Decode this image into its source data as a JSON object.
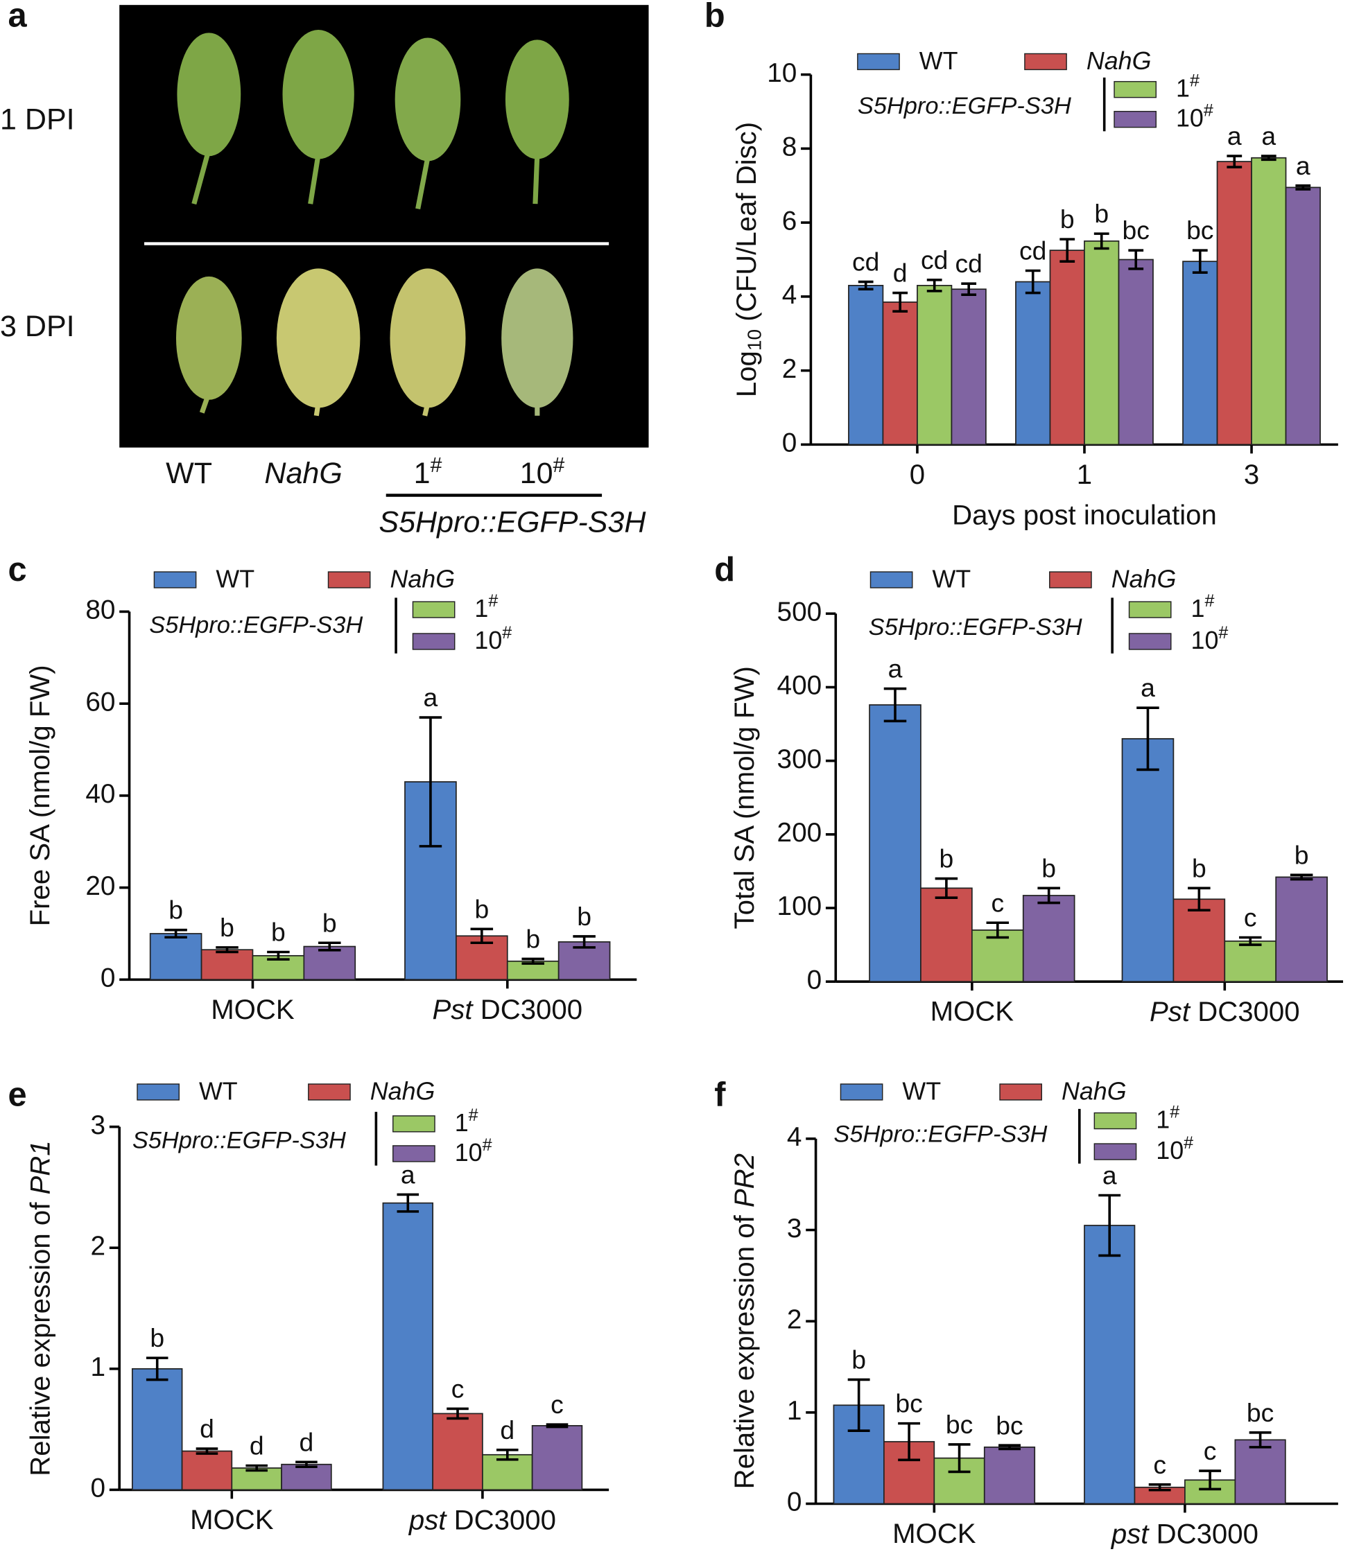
{
  "photo_panel": {
    "panel_label": "a",
    "row_labels": [
      "1 DPI",
      "3 DPI"
    ],
    "column_labels": [
      "WT",
      "NahG",
      "1#",
      "10#"
    ],
    "group_label": "S5Hpro::EGFP-S3H"
  },
  "chart_data": [
    {
      "type": "bar",
      "panel_label": "b",
      "ylabel_parts": [
        {
          "text": "Log"
        },
        {
          "text": "10",
          "style": "sub"
        },
        {
          "text": " (CFU/Leaf Disc)"
        }
      ],
      "xlabel": "Days post inoculation",
      "categories": [
        "0",
        "1",
        "3"
      ],
      "group_label": "S5Hpro::EGFP-S3H",
      "ylim": [
        0,
        10
      ],
      "yticks": [
        0,
        2,
        4,
        6,
        8,
        10
      ],
      "series": [
        {
          "name": "WT",
          "color": "#4f81c7",
          "values": [
            4.3,
            4.4,
            4.95
          ],
          "errors": [
            0.1,
            0.3,
            0.3
          ],
          "letters": [
            "cd",
            "cd",
            "bc"
          ]
        },
        {
          "name": "NahG",
          "italic": true,
          "color": "#c9504f",
          "values": [
            3.85,
            5.25,
            7.65
          ],
          "errors": [
            0.25,
            0.3,
            0.15
          ],
          "letters": [
            "d",
            "b",
            "a"
          ]
        },
        {
          "name": "1#",
          "color": "#9bc865",
          "values": [
            4.3,
            5.5,
            7.75
          ],
          "errors": [
            0.15,
            0.2,
            0.05
          ],
          "letters": [
            "cd",
            "b",
            "a"
          ]
        },
        {
          "name": "10#",
          "color": "#8064a2",
          "values": [
            4.2,
            5.0,
            6.95
          ],
          "errors": [
            0.15,
            0.25,
            0.05
          ],
          "letters": [
            "cd",
            "bc",
            "a"
          ]
        }
      ]
    },
    {
      "type": "bar",
      "panel_label": "c",
      "ylabel_parts": [
        {
          "text": "Free SA (nmol/g FW)"
        }
      ],
      "categories": [
        "MOCK",
        "Pst DC3000"
      ],
      "italic_first_word": [
        false,
        true
      ],
      "group_label": "S5Hpro::EGFP-S3H",
      "ylim": [
        0,
        80
      ],
      "yticks": [
        0,
        20,
        40,
        60,
        80
      ],
      "series": [
        {
          "name": "WT",
          "color": "#4f81c7",
          "values": [
            10,
            43
          ],
          "errors": [
            0.8,
            14
          ],
          "letters": [
            "b",
            "a"
          ]
        },
        {
          "name": "NahG",
          "italic": true,
          "color": "#c9504f",
          "values": [
            6.5,
            9.5
          ],
          "errors": [
            0.5,
            1.5
          ],
          "letters": [
            "b",
            "b"
          ]
        },
        {
          "name": "1#",
          "color": "#9bc865",
          "values": [
            5.2,
            4
          ],
          "errors": [
            0.8,
            0.5
          ],
          "letters": [
            "b",
            "b"
          ]
        },
        {
          "name": "10#",
          "color": "#8064a2",
          "values": [
            7.2,
            8.2
          ],
          "errors": [
            0.8,
            1.2
          ],
          "letters": [
            "b",
            "b"
          ]
        }
      ]
    },
    {
      "type": "bar",
      "panel_label": "d",
      "ylabel_parts": [
        {
          "text": "Total SA (nmol/g FW)"
        }
      ],
      "categories": [
        "MOCK",
        "Pst DC3000"
      ],
      "italic_first_word": [
        false,
        true
      ],
      "group_label": "S5Hpro::EGFP-S3H",
      "ylim": [
        0,
        500
      ],
      "yticks": [
        0,
        100,
        200,
        300,
        400,
        500
      ],
      "series": [
        {
          "name": "WT",
          "color": "#4f81c7",
          "values": [
            376,
            330
          ],
          "errors": [
            22,
            42
          ],
          "letters": [
            "a",
            "a"
          ]
        },
        {
          "name": "NahG",
          "italic": true,
          "color": "#c9504f",
          "values": [
            127,
            112
          ],
          "errors": [
            13,
            15
          ],
          "letters": [
            "b",
            "b"
          ]
        },
        {
          "name": "1#",
          "color": "#9bc865",
          "values": [
            70,
            55
          ],
          "errors": [
            10,
            5
          ],
          "letters": [
            "c",
            "c"
          ]
        },
        {
          "name": "10#",
          "color": "#8064a2",
          "values": [
            117,
            142
          ],
          "errors": [
            10,
            3
          ],
          "letters": [
            "b",
            "b"
          ]
        }
      ]
    },
    {
      "type": "bar",
      "panel_label": "e",
      "ylabel_parts": [
        {
          "text": "Relative expression of "
        },
        {
          "text": "PR1",
          "style": "italic"
        }
      ],
      "categories": [
        "MOCK",
        "pst DC3000"
      ],
      "italic_first_word": [
        false,
        true
      ],
      "group_label": "S5Hpro::EGFP-S3H",
      "ylim": [
        0,
        3
      ],
      "yticks": [
        0,
        1,
        2,
        3
      ],
      "series": [
        {
          "name": "WT",
          "color": "#4f81c7",
          "values": [
            1.0,
            2.37
          ],
          "errors": [
            0.09,
            0.07
          ],
          "letters": [
            "b",
            "a"
          ]
        },
        {
          "name": "NahG",
          "italic": true,
          "color": "#c9504f",
          "values": [
            0.32,
            0.63
          ],
          "errors": [
            0.02,
            0.04
          ],
          "letters": [
            "d",
            "c"
          ]
        },
        {
          "name": "1#",
          "color": "#9bc865",
          "values": [
            0.18,
            0.29
          ],
          "errors": [
            0.02,
            0.04
          ],
          "letters": [
            "d",
            "d"
          ]
        },
        {
          "name": "10#",
          "color": "#8064a2",
          "values": [
            0.21,
            0.53
          ],
          "errors": [
            0.02,
            0.01
          ],
          "letters": [
            "d",
            "c"
          ]
        }
      ]
    },
    {
      "type": "bar",
      "panel_label": "f",
      "ylabel_parts": [
        {
          "text": "Relative expression of "
        },
        {
          "text": "PR2",
          "style": "italic"
        }
      ],
      "categories": [
        "MOCK",
        "pst DC3000"
      ],
      "italic_first_word": [
        false,
        true
      ],
      "group_label": "S5Hpro::EGFP-S3H",
      "ylim": [
        0,
        4
      ],
      "yticks": [
        0,
        1,
        2,
        3,
        4
      ],
      "series": [
        {
          "name": "WT",
          "color": "#4f81c7",
          "values": [
            1.08,
            3.05
          ],
          "errors": [
            0.28,
            0.33
          ],
          "letters": [
            "b",
            "a"
          ]
        },
        {
          "name": "NahG",
          "italic": true,
          "color": "#c9504f",
          "values": [
            0.68,
            0.18
          ],
          "errors": [
            0.2,
            0.03
          ],
          "letters": [
            "bc",
            "c"
          ]
        },
        {
          "name": "1#",
          "color": "#9bc865",
          "values": [
            0.5,
            0.26
          ],
          "errors": [
            0.15,
            0.1
          ],
          "letters": [
            "bc",
            "c"
          ]
        },
        {
          "name": "10#",
          "color": "#8064a2",
          "values": [
            0.62,
            0.7
          ],
          "errors": [
            0.02,
            0.08
          ],
          "letters": [
            "bc",
            "bc"
          ]
        }
      ]
    }
  ]
}
